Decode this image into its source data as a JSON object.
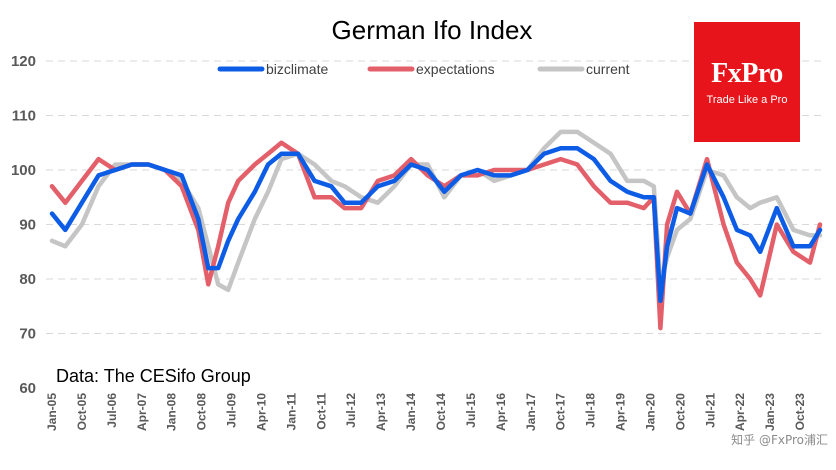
{
  "logo": {
    "brand": "FxPro",
    "tagline": "Trade Like a Pro"
  },
  "watermark": "知乎 @FxPro浦汇",
  "chart_data": {
    "type": "line",
    "title": "German Ifo Index",
    "source_note": "Data: The CESifo Group",
    "xlabel": "",
    "ylabel": "",
    "ylim": [
      60,
      120
    ],
    "yticks": [
      60,
      70,
      80,
      90,
      100,
      110,
      120
    ],
    "grid": "horizontal-dashed",
    "legend_position": "top-center",
    "x_tick_labels": [
      "Jan-05",
      "Oct-05",
      "Jul-06",
      "Apr-07",
      "Jan-08",
      "Oct-08",
      "Jul-09",
      "Apr-10",
      "Jan-11",
      "Oct-11",
      "Jul-12",
      "Apr-13",
      "Jan-14",
      "Oct-14",
      "Jul-15",
      "Apr-16",
      "Jan-17",
      "Oct-17",
      "Jul-18",
      "Apr-19",
      "Jan-20",
      "Oct-20",
      "Jul-21",
      "Apr-22",
      "Jan-23",
      "Oct-23"
    ],
    "x": [
      "2005-01",
      "2005-05",
      "2005-10",
      "2006-03",
      "2006-08",
      "2007-01",
      "2007-06",
      "2007-11",
      "2008-04",
      "2008-09",
      "2008-12",
      "2009-03",
      "2009-06",
      "2009-09",
      "2010-02",
      "2010-06",
      "2010-10",
      "2011-03",
      "2011-08",
      "2012-01",
      "2012-05",
      "2012-10",
      "2013-03",
      "2013-08",
      "2014-01",
      "2014-06",
      "2014-11",
      "2015-04",
      "2015-09",
      "2016-02",
      "2016-07",
      "2016-12",
      "2017-05",
      "2017-10",
      "2018-03",
      "2018-08",
      "2019-01",
      "2019-06",
      "2019-11",
      "2020-02",
      "2020-04",
      "2020-06",
      "2020-09",
      "2021-01",
      "2021-06",
      "2021-11",
      "2022-03",
      "2022-07",
      "2022-10",
      "2023-03",
      "2023-08",
      "2024-01",
      "2024-04"
    ],
    "series": [
      {
        "name": "bizclimate",
        "color": "#0d5ce6",
        "values": [
          92,
          89,
          94,
          99,
          100,
          101,
          101,
          100,
          99,
          91,
          82,
          82,
          87,
          91,
          96,
          101,
          103,
          103,
          98,
          97,
          94,
          94,
          97,
          98,
          101,
          100,
          96,
          99,
          100,
          99,
          99,
          100,
          103,
          104,
          104,
          102,
          98,
          96,
          95,
          95,
          76,
          86,
          93,
          92,
          101,
          95,
          89,
          88,
          85,
          93,
          86,
          86,
          89
        ]
      },
      {
        "name": "expectations",
        "color": "#e35f6a",
        "values": [
          97,
          94,
          98,
          102,
          100,
          101,
          101,
          100,
          97,
          89,
          79,
          86,
          94,
          98,
          101,
          103,
          105,
          103,
          95,
          95,
          93,
          93,
          98,
          99,
          102,
          99,
          97,
          99,
          99,
          100,
          100,
          100,
          101,
          102,
          101,
          97,
          94,
          94,
          93,
          95,
          71,
          90,
          96,
          92,
          102,
          90,
          83,
          80,
          77,
          90,
          85,
          83,
          90
        ]
      },
      {
        "name": "current",
        "color": "#c5c5c5",
        "values": [
          87,
          86,
          90,
          97,
          101,
          101,
          101,
          100,
          98,
          93,
          86,
          79,
          78,
          83,
          91,
          96,
          102,
          103,
          101,
          98,
          97,
          95,
          94,
          97,
          101,
          101,
          95,
          99,
          100,
          98,
          99,
          100,
          104,
          107,
          107,
          105,
          103,
          98,
          98,
          97,
          79,
          84,
          89,
          91,
          100,
          99,
          95,
          93,
          94,
          95,
          89,
          88,
          88
        ]
      }
    ]
  }
}
